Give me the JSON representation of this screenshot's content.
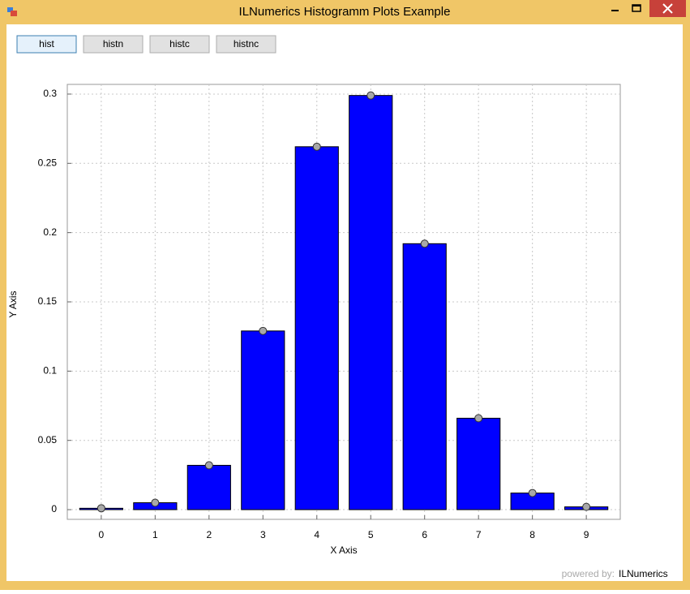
{
  "window": {
    "title": "ILNumerics Histogramm Plots Example"
  },
  "buttons": [
    "hist",
    "histn",
    "histc",
    "histnc"
  ],
  "footer": {
    "prefix": "powered by:",
    "brand": "ILNumerics"
  },
  "chart_data": {
    "type": "bar",
    "x": [
      0,
      1,
      2,
      3,
      4,
      5,
      6,
      7,
      8,
      9
    ],
    "values": [
      0.001,
      0.005,
      0.032,
      0.129,
      0.262,
      0.299,
      0.192,
      0.066,
      0.012,
      0.002
    ],
    "color": "#0000ff",
    "marker_color": "#a8a8a8",
    "xlabel": "X Axis",
    "ylabel": "Y Axis",
    "xlim": [
      -0.63,
      9.63
    ],
    "ylim": [
      -0.007,
      0.307
    ],
    "xticks": [
      0,
      1,
      2,
      3,
      4,
      5,
      6,
      7,
      8,
      9
    ],
    "yticks": [
      0,
      0.05,
      0.1,
      0.15,
      0.2,
      0.25,
      0.3
    ],
    "grid": true
  }
}
